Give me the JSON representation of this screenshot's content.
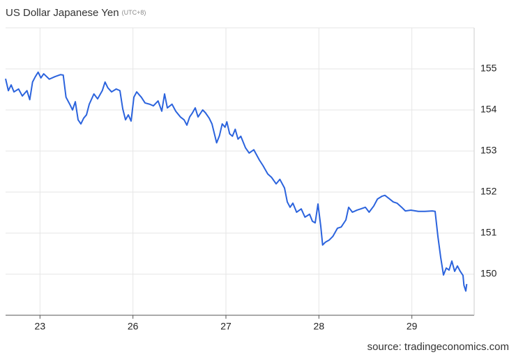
{
  "chart_data": {
    "type": "line",
    "title": "US Dollar Japanese Yen",
    "subtitle": "(UTC+8)",
    "source": "source: tradingeconomics.com",
    "color": "#2b63dd",
    "grid": true,
    "xlim": [
      -0.37,
      4.67
    ],
    "ylim": [
      149,
      156
    ],
    "xticks": [
      {
        "value": 0,
        "label": "23"
      },
      {
        "value": 1,
        "label": "26"
      },
      {
        "value": 2,
        "label": "27"
      },
      {
        "value": 3,
        "label": "28"
      },
      {
        "value": 4,
        "label": "29"
      }
    ],
    "yticks": [
      150,
      151,
      152,
      153,
      154,
      155
    ],
    "x": [
      -0.37,
      -0.34,
      -0.31,
      -0.28,
      -0.23,
      -0.19,
      -0.14,
      -0.11,
      -0.08,
      -0.05,
      -0.02,
      0.01,
      0.04,
      0.1,
      0.16,
      0.22,
      0.25,
      0.28,
      0.32,
      0.35,
      0.38,
      0.41,
      0.44,
      0.47,
      0.5,
      0.53,
      0.58,
      0.62,
      0.67,
      0.7,
      0.73,
      0.77,
      0.82,
      0.86,
      0.89,
      0.92,
      0.95,
      0.98,
      1.01,
      1.04,
      1.09,
      1.13,
      1.18,
      1.22,
      1.27,
      1.31,
      1.34,
      1.37,
      1.42,
      1.46,
      1.51,
      1.55,
      1.58,
      1.61,
      1.64,
      1.67,
      1.7,
      1.75,
      1.78,
      1.82,
      1.85,
      1.9,
      1.93,
      1.96,
      1.99,
      2.01,
      2.04,
      2.07,
      2.1,
      2.13,
      2.16,
      2.21,
      2.25,
      2.3,
      2.36,
      2.4,
      2.45,
      2.49,
      2.54,
      2.58,
      2.63,
      2.66,
      2.69,
      2.72,
      2.76,
      2.81,
      2.85,
      2.9,
      2.93,
      2.96,
      2.99,
      3.02,
      3.04,
      3.07,
      3.11,
      3.15,
      3.2,
      3.24,
      3.29,
      3.32,
      3.36,
      3.41,
      3.45,
      3.5,
      3.54,
      3.59,
      3.63,
      3.68,
      3.71,
      3.75,
      3.8,
      3.84,
      3.89,
      3.93,
      3.99,
      4.07,
      4.14,
      4.22,
      4.25,
      4.28,
      4.31,
      4.34,
      4.37,
      4.4,
      4.43,
      4.46,
      4.49,
      4.52,
      4.55,
      4.56,
      4.58,
      4.59
    ],
    "values": [
      154.76,
      154.47,
      154.61,
      154.44,
      154.51,
      154.34,
      154.47,
      154.25,
      154.68,
      154.81,
      154.92,
      154.78,
      154.88,
      154.75,
      154.81,
      154.86,
      154.85,
      154.31,
      154.14,
      154.0,
      154.2,
      153.76,
      153.66,
      153.8,
      153.88,
      154.14,
      154.39,
      154.27,
      154.47,
      154.68,
      154.54,
      154.44,
      154.51,
      154.47,
      154.03,
      153.76,
      153.88,
      153.73,
      154.31,
      154.44,
      154.31,
      154.17,
      154.14,
      154.1,
      154.22,
      153.97,
      154.39,
      154.05,
      154.14,
      153.97,
      153.83,
      153.76,
      153.63,
      153.83,
      153.93,
      154.05,
      153.83,
      154.0,
      153.93,
      153.8,
      153.66,
      153.2,
      153.37,
      153.66,
      153.58,
      153.71,
      153.42,
      153.36,
      153.53,
      153.29,
      153.36,
      153.08,
      152.95,
      153.03,
      152.78,
      152.64,
      152.44,
      152.36,
      152.2,
      152.31,
      152.1,
      151.76,
      151.63,
      151.73,
      151.51,
      151.59,
      151.39,
      151.46,
      151.29,
      151.25,
      151.71,
      151.17,
      150.71,
      150.78,
      150.83,
      150.92,
      151.12,
      151.15,
      151.32,
      151.63,
      151.51,
      151.56,
      151.59,
      151.63,
      151.51,
      151.66,
      151.83,
      151.9,
      151.92,
      151.85,
      151.76,
      151.73,
      151.63,
      151.54,
      151.56,
      151.53,
      151.53,
      151.54,
      151.53,
      150.92,
      150.41,
      149.98,
      150.15,
      150.1,
      150.32,
      150.07,
      150.2,
      150.07,
      149.97,
      149.73,
      149.59,
      149.76
    ]
  }
}
